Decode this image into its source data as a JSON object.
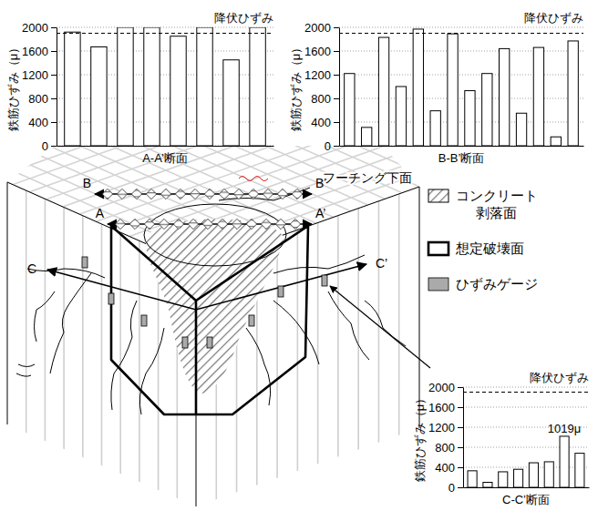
{
  "chart_data": [
    {
      "type": "bar",
      "categories": [
        null,
        null,
        null,
        null,
        null,
        null,
        null,
        null
      ],
      "values": [
        1920,
        1670,
        2000,
        2000,
        1850,
        2000,
        1450,
        2000
      ],
      "x_label": "A-A’断面",
      "y_label": "鉄筋ひずみ（μ）",
      "color": "#ffffff",
      "ylim": [
        0,
        2000
      ],
      "yticks": [
        0,
        400,
        800,
        1200,
        1600,
        2000
      ],
      "grid": true,
      "annotations": [
        {
          "text": "降伏ひずみ",
          "y": 1900
        }
      ]
    },
    {
      "type": "bar",
      "categories": [
        null,
        null,
        null,
        null,
        null,
        null,
        null,
        null,
        null,
        null,
        null,
        null,
        null,
        null
      ],
      "values": [
        1220,
        310,
        1830,
        1000,
        1970,
        590,
        1890,
        930,
        1220,
        1640,
        550,
        1660,
        150,
        1770
      ],
      "x_label": "B-B’断面",
      "y_label": "鉄筋ひずみ（μ）",
      "color": "#ffffff",
      "ylim": [
        0,
        2000
      ],
      "yticks": [
        0,
        400,
        800,
        1200,
        1600,
        2000
      ],
      "grid": true,
      "annotations": [
        {
          "text": "降伏ひずみ",
          "y": 1900
        }
      ]
    },
    {
      "type": "bar",
      "categories": [
        null,
        null,
        null,
        null,
        null,
        null,
        null,
        null
      ],
      "values": [
        330,
        100,
        310,
        360,
        490,
        510,
        1019,
        680
      ],
      "x_label": "C-C’断面",
      "y_label": "鉄筋ひずみ（μ）",
      "color": "#ffffff",
      "ylim": [
        0,
        2000
      ],
      "yticks": [
        0,
        400,
        800,
        1200,
        1600,
        2000
      ],
      "grid": true,
      "annotations": [
        {
          "text": "降伏ひずみ",
          "y": 1900
        },
        {
          "text": "1019μ",
          "x": 6,
          "y": 1019
        }
      ]
    }
  ],
  "diagram": {
    "surface_label": "フーチング下面",
    "legend": [
      {
        "kind": "hatch",
        "label_lines": [
          "コンクリート",
          "剥落面"
        ]
      },
      {
        "kind": "outline",
        "label_lines": [
          "想定破壊面"
        ]
      },
      {
        "kind": "gauge",
        "label_lines": [
          "ひずみゲージ"
        ]
      }
    ],
    "sections": [
      {
        "start": "A",
        "end": "A’"
      },
      {
        "start": "B",
        "end": "B’"
      },
      {
        "start": "C",
        "end": "C’"
      }
    ]
  }
}
